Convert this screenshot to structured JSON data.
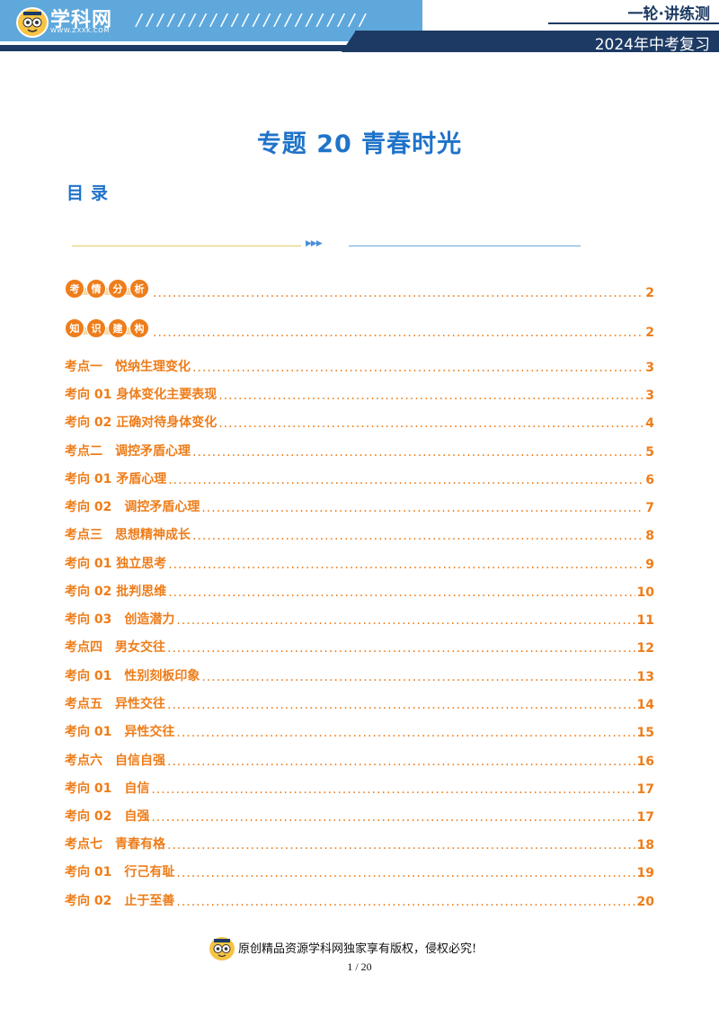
{
  "header": {
    "logo_text": "学科网",
    "logo_url": "WWW.ZXXK.COM",
    "slashes": "//////////////////////",
    "series_title": "一轮·讲练测",
    "year_title": "2024年中考复习"
  },
  "title": "专题 20 青春时光",
  "toc_heading": "目录",
  "toc": {
    "badges": [
      {
        "chars": [
          "考",
          "情",
          "分",
          "析"
        ],
        "page": "2"
      },
      {
        "chars": [
          "知",
          "识",
          "建",
          "构"
        ],
        "page": "2"
      }
    ],
    "items": [
      {
        "label": "考点一　悦纳生理变化",
        "page": "3"
      },
      {
        "label": "考向 01  身体变化主要表现",
        "page": "3"
      },
      {
        "label": "考向 02  正确对待身体变化",
        "page": "4"
      },
      {
        "label": "考点二　调控矛盾心理",
        "page": "5"
      },
      {
        "label": "考向 01  矛盾心理",
        "page": "6"
      },
      {
        "label": "考向 02　调控矛盾心理",
        "page": "7"
      },
      {
        "label": "考点三　思想精神成长",
        "page": "8"
      },
      {
        "label": "考向 01  独立思考",
        "page": "9"
      },
      {
        "label": "考向 02  批判思维",
        "page": "10"
      },
      {
        "label": "考向 03　创造潜力",
        "page": "11"
      },
      {
        "label": "考点四　男女交往",
        "page": "12"
      },
      {
        "label": "考向 01　性别刻板印象",
        "page": "13"
      },
      {
        "label": "考点五　异性交往",
        "page": "14"
      },
      {
        "label": "考向 01　异性交往",
        "page": "15"
      },
      {
        "label": "考点六　自信自强",
        "page": "16"
      },
      {
        "label": "考向 01　自信",
        "page": "17"
      },
      {
        "label": "考向 02　自强",
        "page": "17"
      },
      {
        "label": "考点七　青春有格",
        "page": "18"
      },
      {
        "label": "考向 01　行己有耻",
        "page": "19"
      },
      {
        "label": "考向 02　止于至善",
        "page": "20"
      }
    ]
  },
  "footer": {
    "copyright": "原创精品资源学科网独家享有版权，侵权必究!",
    "page_number": "1 / 20"
  },
  "colors": {
    "accent_blue": "#1f73c9",
    "toc_orange": "#ee7d1a",
    "header_navy": "#1c3a63",
    "header_light_blue": "#5fa8dc"
  }
}
